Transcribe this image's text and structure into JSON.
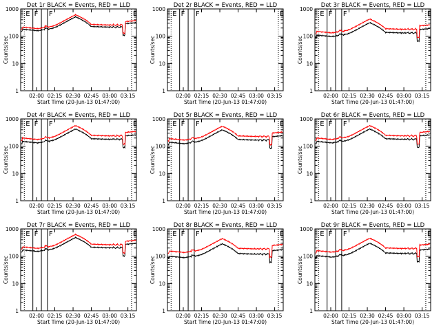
{
  "figure": {
    "ylabel": "Counts/sec",
    "xlabel": "Start Time (20-Jun-13 01:47:00)",
    "y_ticks": [
      {
        "value": 1,
        "label": "1"
      },
      {
        "value": 10,
        "label": "10"
      },
      {
        "value": 100,
        "label": "100"
      },
      {
        "value": 1000,
        "label": "1000"
      }
    ],
    "x_ticks": [
      "02:00",
      "02:15",
      "02:30",
      "02:45",
      "03:00",
      "03:15"
    ],
    "x_tick_minutes": [
      13,
      28,
      43,
      58,
      73,
      88
    ],
    "colors": {
      "events": "#000000",
      "lld": "#ff0000",
      "axes": "#000000"
    }
  },
  "chart_data": [
    {
      "type": "line",
      "title": "Det 1r BLACK = Events, RED = LLD",
      "xlabel": "Start Time (20-Jun-13 01:47:00)",
      "ylabel": "Counts/sec",
      "ylim": [
        1,
        1000
      ],
      "yscale": "log",
      "series": [
        {
          "name": "Events",
          "color": "#000000",
          "level": 180
        },
        {
          "name": "LLD",
          "color": "#ff0000",
          "level": 215
        }
      ],
      "markers": [
        {
          "label": "E",
          "minute": 3,
          "style": "dotted"
        },
        {
          "label": "F",
          "minute": 10,
          "style": "solid"
        },
        {
          "label": "",
          "minute": 17,
          "style": "solid"
        },
        {
          "label": "F",
          "minute": 22,
          "style": "solid"
        },
        {
          "label": "E",
          "minute": 91,
          "style": "dotted"
        }
      ]
    },
    {
      "type": "line",
      "title": "Det 2r BLACK = Events, RED = LLD",
      "xlabel": "Start Time (20-Jun-13 01:47:00)",
      "ylabel": "Counts/sec",
      "ylim": [
        1,
        1000
      ],
      "yscale": "log",
      "series": [],
      "markers": [
        {
          "label": "E",
          "minute": 3,
          "style": "dotted"
        },
        {
          "label": "F",
          "minute": 10,
          "style": "solid"
        },
        {
          "label": "",
          "minute": 17,
          "style": "solid"
        },
        {
          "label": "F",
          "minute": 22,
          "style": "solid"
        },
        {
          "label": "E",
          "minute": 91,
          "style": "dotted"
        }
      ]
    },
    {
      "type": "line",
      "title": "Det 3r BLACK = Events, RED = LLD",
      "xlabel": "Start Time (20-Jun-13 01:47:00)",
      "ylabel": "Counts/sec",
      "ylim": [
        1,
        1000
      ],
      "yscale": "log",
      "series": [
        {
          "name": "Events",
          "color": "#000000",
          "level": 110
        },
        {
          "name": "LLD",
          "color": "#ff0000",
          "level": 150
        }
      ],
      "markers": [
        {
          "label": "E",
          "minute": 3,
          "style": "dotted"
        },
        {
          "label": "F",
          "minute": 10,
          "style": "solid"
        },
        {
          "label": "",
          "minute": 17,
          "style": "solid"
        },
        {
          "label": "F",
          "minute": 22,
          "style": "solid"
        },
        {
          "label": "E",
          "minute": 91,
          "style": "dotted"
        }
      ]
    },
    {
      "type": "line",
      "title": "Det 4r BLACK = Events, RED = LLD",
      "xlabel": "Start Time (20-Jun-13 01:47:00)",
      "ylabel": "Counts/sec",
      "ylim": [
        1,
        1000
      ],
      "yscale": "log",
      "series": [
        {
          "name": "Events",
          "color": "#000000",
          "level": 150
        },
        {
          "name": "LLD",
          "color": "#ff0000",
          "level": 200
        }
      ],
      "markers": [
        {
          "label": "E",
          "minute": 3,
          "style": "dotted"
        },
        {
          "label": "F",
          "minute": 10,
          "style": "solid"
        },
        {
          "label": "",
          "minute": 17,
          "style": "solid"
        },
        {
          "label": "F",
          "minute": 22,
          "style": "solid"
        },
        {
          "label": "E",
          "minute": 91,
          "style": "dotted"
        }
      ]
    },
    {
      "type": "line",
      "title": "Det 5r BLACK = Events, RED = LLD",
      "xlabel": "Start Time (20-Jun-13 01:47:00)",
      "ylabel": "Counts/sec",
      "ylim": [
        1,
        1000
      ],
      "yscale": "log",
      "series": [
        {
          "name": "Events",
          "color": "#000000",
          "level": 140
        },
        {
          "name": "LLD",
          "color": "#ff0000",
          "level": 190
        }
      ],
      "markers": [
        {
          "label": "E",
          "minute": 3,
          "style": "dotted"
        },
        {
          "label": "F",
          "minute": 10,
          "style": "solid"
        },
        {
          "label": "",
          "minute": 17,
          "style": "solid"
        },
        {
          "label": "F",
          "minute": 22,
          "style": "solid"
        },
        {
          "label": "E",
          "minute": 91,
          "style": "dotted"
        }
      ]
    },
    {
      "type": "line",
      "title": "Det 6r BLACK = Events, RED = LLD",
      "xlabel": "Start Time (20-Jun-13 01:47:00)",
      "ylabel": "Counts/sec",
      "ylim": [
        1,
        1000
      ],
      "yscale": "log",
      "series": [
        {
          "name": "Events",
          "color": "#000000",
          "level": 150
        },
        {
          "name": "LLD",
          "color": "#ff0000",
          "level": 200
        }
      ],
      "markers": [
        {
          "label": "E",
          "minute": 3,
          "style": "dotted"
        },
        {
          "label": "F",
          "minute": 10,
          "style": "solid"
        },
        {
          "label": "",
          "minute": 17,
          "style": "solid"
        },
        {
          "label": "F",
          "minute": 22,
          "style": "solid"
        },
        {
          "label": "E",
          "minute": 91,
          "style": "dotted"
        }
      ]
    },
    {
      "type": "line",
      "title": "Det 7r BLACK = Events, RED = LLD",
      "xlabel": "Start Time (20-Jun-13 01:47:00)",
      "ylabel": "Counts/sec",
      "ylim": [
        1,
        1000
      ],
      "yscale": "log",
      "series": [
        {
          "name": "Events",
          "color": "#000000",
          "level": 170
        },
        {
          "name": "LLD",
          "color": "#ff0000",
          "level": 220
        }
      ],
      "markers": [
        {
          "label": "E",
          "minute": 3,
          "style": "dotted"
        },
        {
          "label": "F",
          "minute": 10,
          "style": "solid"
        },
        {
          "label": "",
          "minute": 17,
          "style": "solid"
        },
        {
          "label": "F",
          "minute": 22,
          "style": "solid"
        },
        {
          "label": "E",
          "minute": 91,
          "style": "dotted"
        }
      ]
    },
    {
      "type": "line",
      "title": "Det 8r BLACK = Events, RED = LLD",
      "xlabel": "Start Time (20-Jun-13 01:47:00)",
      "ylabel": "Counts/sec",
      "ylim": [
        1,
        1000
      ],
      "yscale": "log",
      "series": [
        {
          "name": "Events",
          "color": "#000000",
          "level": 100
        },
        {
          "name": "LLD",
          "color": "#ff0000",
          "level": 155
        }
      ],
      "markers": [
        {
          "label": "E",
          "minute": 3,
          "style": "dotted"
        },
        {
          "label": "F",
          "minute": 10,
          "style": "solid"
        },
        {
          "label": "",
          "minute": 17,
          "style": "solid"
        },
        {
          "label": "F",
          "minute": 22,
          "style": "solid"
        },
        {
          "label": "E",
          "minute": 91,
          "style": "dotted"
        }
      ]
    },
    {
      "type": "line",
      "title": "Det 9r BLACK = Events, RED = LLD",
      "xlabel": "Start Time (20-Jun-13 01:47:00)",
      "ylabel": "Counts/sec",
      "ylim": [
        1,
        1000
      ],
      "yscale": "log",
      "series": [
        {
          "name": "Events",
          "color": "#000000",
          "level": 105
        },
        {
          "name": "LLD",
          "color": "#ff0000",
          "level": 160
        }
      ],
      "markers": [
        {
          "label": "E",
          "minute": 3,
          "style": "dotted"
        },
        {
          "label": "F",
          "minute": 10,
          "style": "solid"
        },
        {
          "label": "",
          "minute": 17,
          "style": "solid"
        },
        {
          "label": "F",
          "minute": 22,
          "style": "solid"
        },
        {
          "label": "E",
          "minute": 91,
          "style": "dotted"
        }
      ]
    }
  ]
}
